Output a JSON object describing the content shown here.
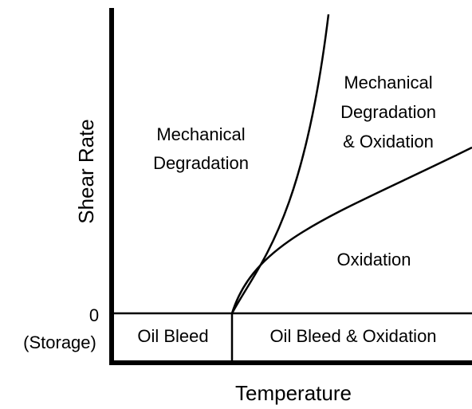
{
  "axes": {
    "y_label": "Shear Rate",
    "x_label": "Temperature",
    "y_tick_zero": "0",
    "y_tick_storage": "(Storage)"
  },
  "regions": {
    "mechanical": {
      "lines": [
        "Mechanical",
        "Degradation"
      ]
    },
    "mechanical_oxidation": {
      "lines": [
        "Mechanical",
        "Degradation",
        "& Oxidation"
      ]
    },
    "oxidation": {
      "lines": [
        "Oxidation"
      ]
    },
    "oil_bleed": {
      "lines": [
        "Oil Bleed"
      ]
    },
    "oil_bleed_oxidation": {
      "lines": [
        "Oil Bleed & Oxidation"
      ]
    }
  }
}
